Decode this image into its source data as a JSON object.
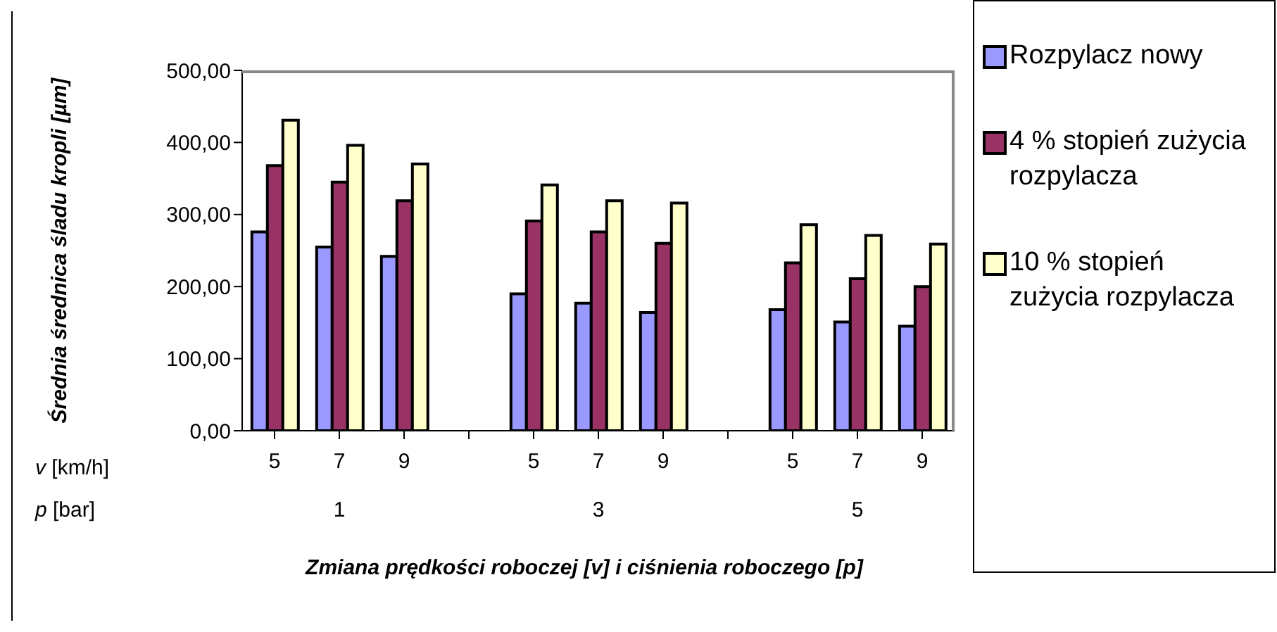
{
  "chart_data": {
    "type": "bar",
    "xlabel": "Zmiana prędkości roboczej [v] i ciśnienia roboczego [p]",
    "ylabel": "Średnia średnica śladu kropli [µm]",
    "categories": [
      "5",
      "7",
      "9",
      null,
      "5",
      "7",
      "9",
      null,
      "5",
      "7",
      "9"
    ],
    "series": [
      {
        "name": "Rozpylacz nowy",
        "color": "#9999ff",
        "values": [
          276,
          255,
          242,
          null,
          190,
          177,
          164,
          null,
          168,
          151,
          145
        ]
      },
      {
        "name": "4 % stopień zużycia rozpylacza",
        "color": "#993366",
        "values": [
          368,
          345,
          319,
          null,
          291,
          276,
          260,
          null,
          233,
          211,
          200
        ]
      },
      {
        "name": "10 % stopień zużycia rozpylacza",
        "color": "#ffffcc",
        "values": [
          431,
          396,
          370,
          null,
          341,
          319,
          316,
          null,
          286,
          271,
          259
        ]
      }
    ],
    "ylim": [
      0,
      500
    ],
    "yticks": [
      {
        "value": 0,
        "label": "0,00"
      },
      {
        "value": 100,
        "label": "100,00"
      },
      {
        "value": 200,
        "label": "200,00"
      },
      {
        "value": 300,
        "label": "300,00"
      },
      {
        "value": 400,
        "label": "400,00"
      },
      {
        "value": 500,
        "label": "500,00"
      }
    ],
    "annotations": [
      "v [km/h]",
      "p [bar]",
      "1",
      "3",
      "5"
    ],
    "legend": "right"
  }
}
